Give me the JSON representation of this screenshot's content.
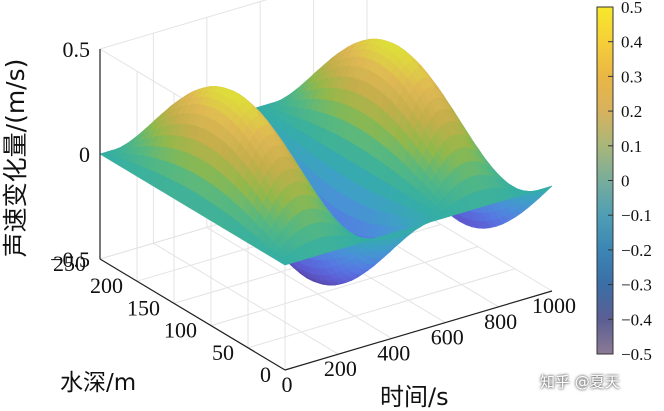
{
  "chart_data": {
    "type": "surface",
    "xlabel": "时间/s",
    "ylabel": "水深/m",
    "zlabel": "声速变化量/(m/s)",
    "xticks": [
      "0",
      "200",
      "400",
      "600",
      "800",
      "1000"
    ],
    "yticks": [
      "0",
      "50",
      "100",
      "150",
      "200",
      "250"
    ],
    "zticks": [
      "−0.5",
      "0",
      "0.5"
    ],
    "xlim": [
      0,
      1000
    ],
    "ylim": [
      0,
      250
    ],
    "zlim": [
      -0.5,
      0.5
    ],
    "surface": {
      "formula": "z = 0.5 * sin(2*pi*t/600) * sin(pi*d/250)",
      "amplitude": 0.5,
      "period_s": 600,
      "depth_range_m": [
        0,
        250
      ],
      "time_range_s": [
        0,
        1000
      ]
    },
    "colorbar": {
      "ticks": [
        "0.5",
        "0.4",
        "0.3",
        "0.2",
        "0.1",
        "0",
        "−0.1",
        "−0.2",
        "−0.3",
        "−0.4",
        "−0.5"
      ],
      "range": [
        -0.5,
        0.5
      ],
      "colormap": "parula",
      "stops": [
        "#3e26a8",
        "#4746eb",
        "#3e6bff",
        "#2d8cf3",
        "#1aa6d4",
        "#0eb8aa",
        "#3ec578",
        "#92c52c",
        "#d6b82e",
        "#fcc63b",
        "#f9fb15"
      ]
    },
    "grid": true
  },
  "watermark": "知乎 @夏天"
}
